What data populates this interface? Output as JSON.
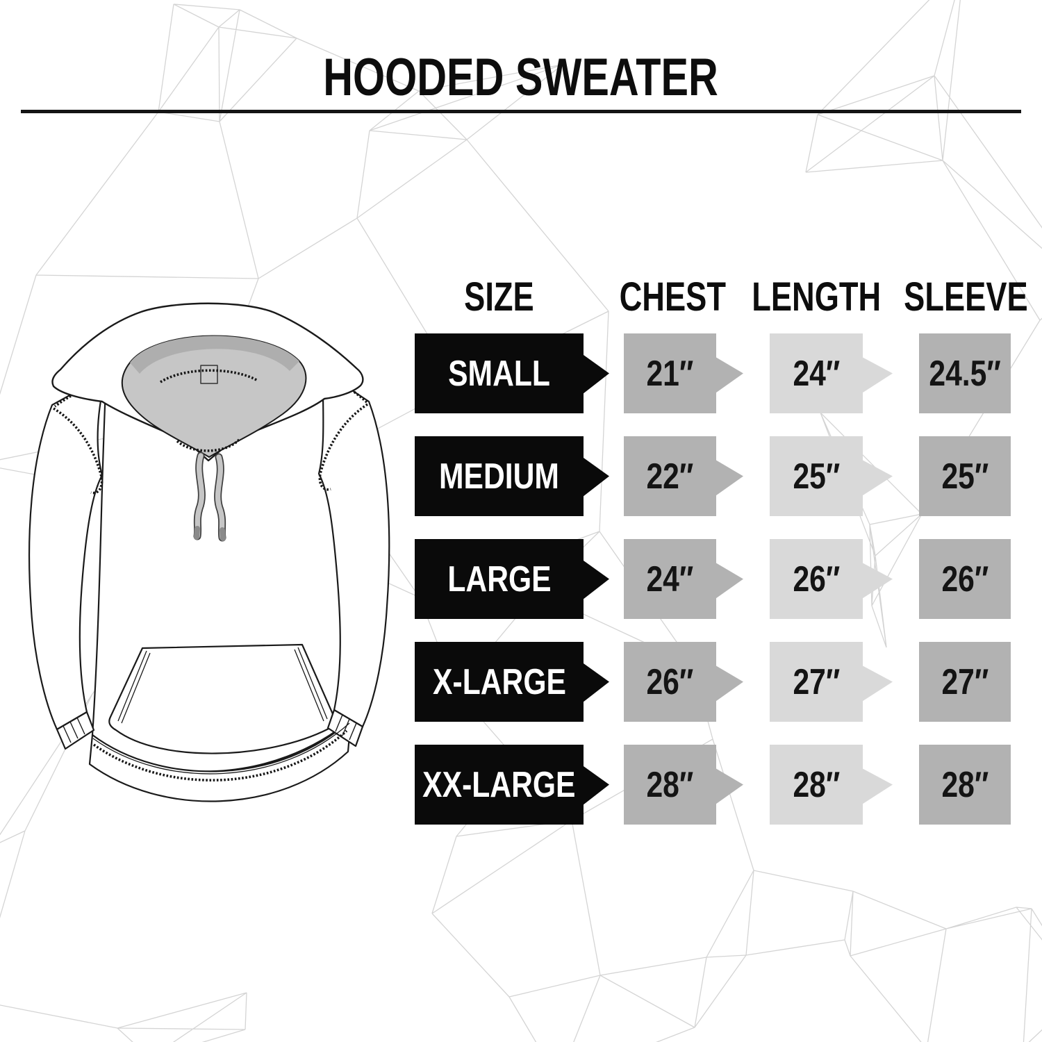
{
  "title": "HOODED SWEATER",
  "illustration": {
    "name": "hooded sweater technical line drawing",
    "hood_lining_color": "#c6c6c6",
    "outline_color": "#1a1a1a"
  },
  "colors": {
    "size_badge_bg": "#0a0a0a",
    "size_badge_text": "#ffffff",
    "chest_badge_bg": "#b2b2b2",
    "length_badge_bg": "#d9d9d9",
    "sleeve_badge_bg": "#b2b2b2",
    "value_text": "#141414",
    "background_mesh_line": "#cccccc"
  },
  "table": {
    "headers": [
      "SIZE",
      "CHEST",
      "LENGTH",
      "SLEEVE"
    ],
    "rows": [
      {
        "size": "SMALL",
        "chest": "21″",
        "length": "24″",
        "sleeve": "24.5″"
      },
      {
        "size": "MEDIUM",
        "chest": "22″",
        "length": "25″",
        "sleeve": "25″"
      },
      {
        "size": "LARGE",
        "chest": "24″",
        "length": "26″",
        "sleeve": "26″"
      },
      {
        "size": "X-LARGE",
        "chest": "26″",
        "length": "27″",
        "sleeve": "27″"
      },
      {
        "size": "XX-LARGE",
        "chest": "28″",
        "length": "28″",
        "sleeve": "28″"
      }
    ]
  }
}
